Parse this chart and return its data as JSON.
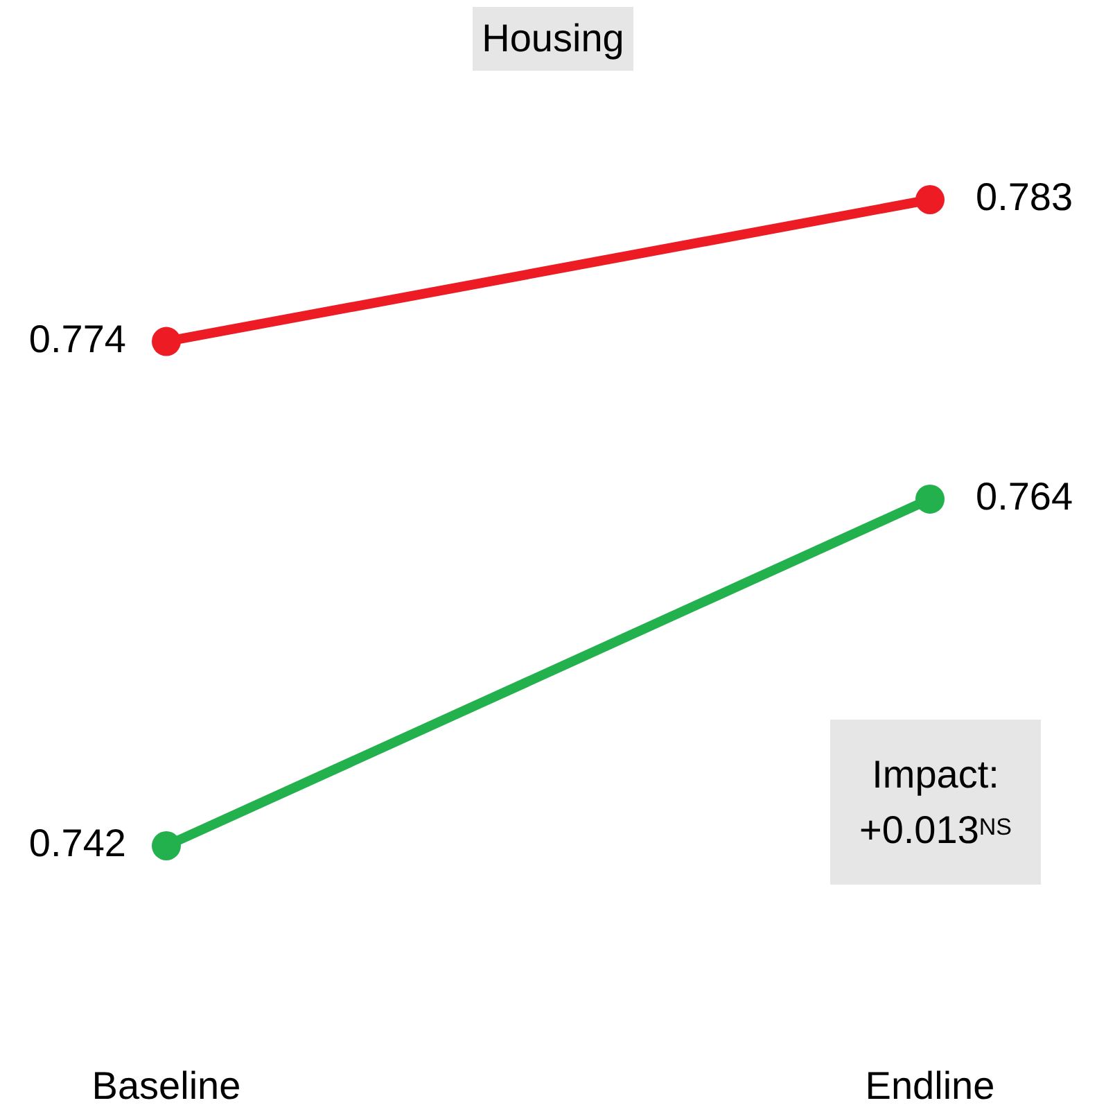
{
  "chart_data": {
    "type": "line",
    "title": "Housing",
    "categories": [
      "Baseline",
      "Endline"
    ],
    "series": [
      {
        "color": "#ed1c24",
        "values": [
          0.774,
          0.783
        ]
      },
      {
        "color": "#22b14c",
        "values": [
          0.742,
          0.764
        ]
      }
    ],
    "tick_labels": "x",
    "data_labels": true,
    "marker": "circle",
    "line_style": "solid",
    "grid": false,
    "legend": false,
    "annotations": [
      "Impact: +0.013$^{NS}$"
    ]
  }
}
